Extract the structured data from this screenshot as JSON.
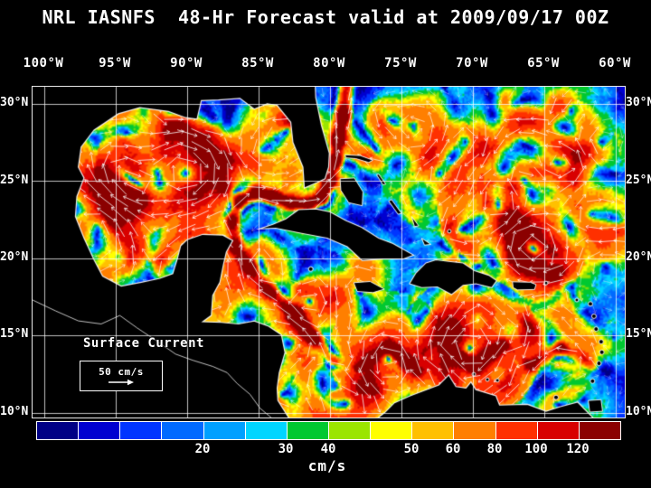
{
  "title": "NRL IASNFS  48-Hr Forecast valid at 2009/09/17 00Z",
  "axes": {
    "lon_labels": [
      "100°W",
      "95°W",
      "90°W",
      "85°W",
      "80°W",
      "75°W",
      "70°W",
      "65°W",
      "60°W"
    ],
    "lat_labels": [
      "30°N",
      "25°N",
      "20°N",
      "15°N",
      "10°N"
    ]
  },
  "legend": {
    "label": "Surface Current",
    "scale_label": "50 cm/s"
  },
  "colorbar": {
    "unit": "cm/s",
    "tick_labels": [
      "20",
      "30",
      "40",
      "50",
      "60",
      "80",
      "100",
      "120"
    ],
    "colors": [
      "#000085",
      "#0000d0",
      "#0035ff",
      "#006aff",
      "#00a0ff",
      "#00d5ff",
      "#00c830",
      "#9be500",
      "#ffff00",
      "#ffc000",
      "#ff7f00",
      "#ff3000",
      "#d80000",
      "#8b0000"
    ]
  }
}
